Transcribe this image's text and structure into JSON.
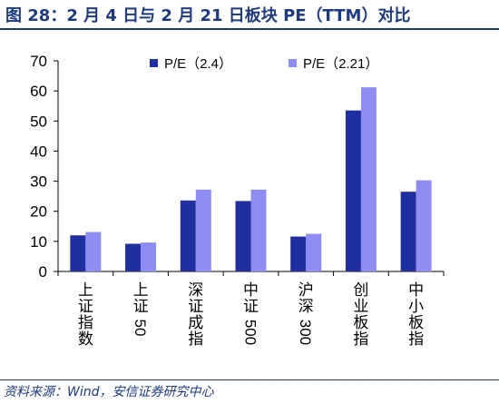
{
  "header": {
    "title": "图 28：2 月 4 日与 2 月 21 日板块 PE（TTM）对比"
  },
  "footer": {
    "source": "资料来源：Wind，安信证券研究中心"
  },
  "chart_data": {
    "type": "bar",
    "title": "",
    "xlabel": "",
    "ylabel": "",
    "categories": [
      "上证指数",
      "上证50",
      "深证成指",
      "中证500",
      "沪深300",
      "创业板指",
      "中小板指"
    ],
    "series": [
      {
        "name": "P/E（2.4）",
        "color": "#1f2ea0",
        "values": [
          12.0,
          9.2,
          23.6,
          23.4,
          11.6,
          53.5,
          26.5
        ]
      },
      {
        "name": "P/E（2.21）",
        "color": "#8c8cf2",
        "values": [
          13.1,
          9.6,
          27.2,
          27.2,
          12.5,
          61.2,
          30.3
        ]
      }
    ],
    "ylim": [
      0,
      70
    ],
    "yticks": [
      0,
      10,
      20,
      30,
      40,
      50,
      60,
      70
    ],
    "legend_position": "top",
    "grid": false
  }
}
